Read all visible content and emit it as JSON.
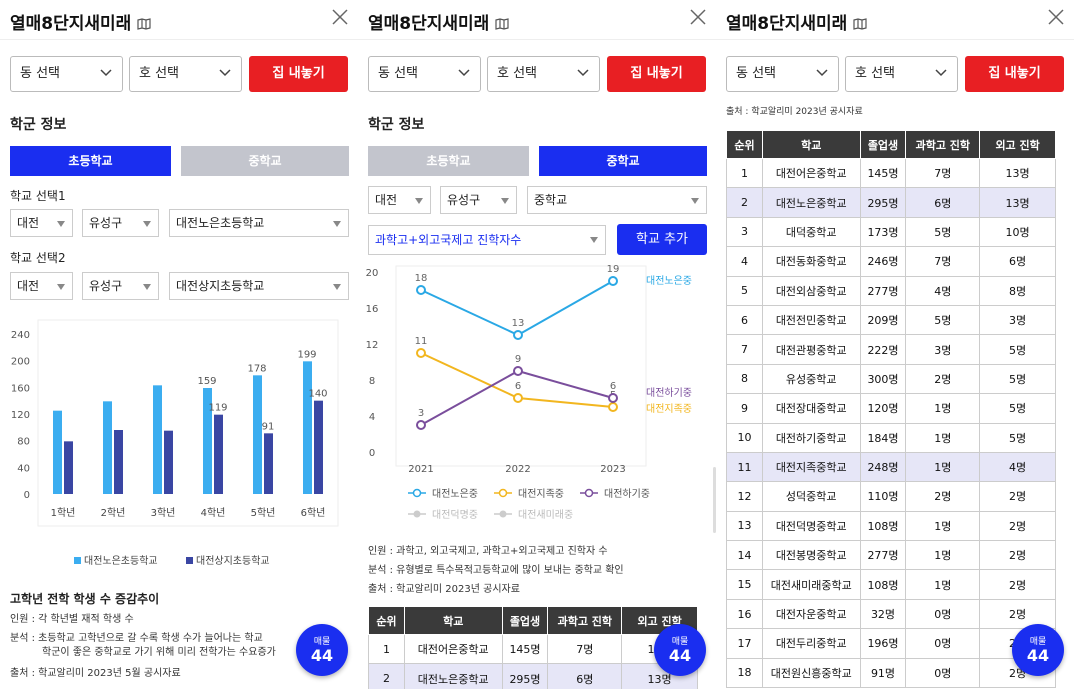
{
  "header": {
    "title": "열매8단지새미래"
  },
  "controls": {
    "dong": "동 선택",
    "ho": "호 선택",
    "sell_button": "집 내놓기"
  },
  "section_title": "학군 정보",
  "tabs": {
    "elementary": "초등학교",
    "middle": "중학교"
  },
  "panel1": {
    "school1_label": "학교 선택1",
    "school1": {
      "city": "대전",
      "district": "유성구",
      "school": "대전노은초등학교"
    },
    "school2_label": "학교 선택2",
    "school2": {
      "city": "대전",
      "district": "유성구",
      "school": "대전상지초등학교"
    },
    "chart_title": "고학년 전학 학생 수 증감추이",
    "notes": [
      "인원 : 각 학년별 재적 학생 수",
      "분석 : 초등학교 고학년으로 갈 수록 학생 수가 늘어나는 학교",
      "학군이 좋은 중학교로 가기 위해 미리 전학가는 수요증가",
      "출처 : 학교알리미 2023년 5월 공시자료"
    ]
  },
  "panel2": {
    "filter": {
      "city": "대전",
      "district": "유성구",
      "level": "중학교"
    },
    "metric": "과학고+외고국제고 진학자수",
    "add_button": "학교 추가",
    "legend_inactive": [
      "대전덕명중",
      "대전새미래중"
    ],
    "notes": [
      "인원 : 과학고, 외고국제고, 과학고+외고국제고 진학자 수",
      "분석 : 유형별로 특수목적고등학교에 많이 보내는 중학교 확인",
      "출처 : 학교알리미 2023년 공시자료"
    ]
  },
  "panel3": {
    "source_note": "출처 : 학교알리미 2023년 공시자료"
  },
  "badge": {
    "label": "매물",
    "count": "44"
  },
  "table": {
    "headers": [
      "순위",
      "학교",
      "졸업생",
      "과학고 진학",
      "외고 진학"
    ],
    "rows": [
      [
        "1",
        "대전어은중학교",
        "145명",
        "7명",
        "13명"
      ],
      [
        "2",
        "대전노은중학교",
        "295명",
        "6명",
        "13명"
      ],
      [
        "3",
        "대덕중학교",
        "173명",
        "5명",
        "10명"
      ],
      [
        "4",
        "대전동화중학교",
        "246명",
        "7명",
        "6명"
      ],
      [
        "5",
        "대전외삼중학교",
        "277명",
        "4명",
        "8명"
      ],
      [
        "6",
        "대전전민중학교",
        "209명",
        "5명",
        "3명"
      ],
      [
        "7",
        "대전관평중학교",
        "222명",
        "3명",
        "5명"
      ],
      [
        "8",
        "유성중학교",
        "300명",
        "2명",
        "5명"
      ],
      [
        "9",
        "대전장대중학교",
        "120명",
        "1명",
        "5명"
      ],
      [
        "10",
        "대전하기중학교",
        "184명",
        "1명",
        "5명"
      ],
      [
        "11",
        "대전지족중학교",
        "248명",
        "1명",
        "4명"
      ],
      [
        "12",
        "성덕중학교",
        "110명",
        "2명",
        "2명"
      ],
      [
        "13",
        "대전덕명중학교",
        "108명",
        "1명",
        "2명"
      ],
      [
        "14",
        "대전봉명중학교",
        "277명",
        "1명",
        "2명"
      ],
      [
        "15",
        "대전새미래중학교",
        "108명",
        "1명",
        "2명"
      ],
      [
        "16",
        "대전자운중학교",
        "32명",
        "0명",
        "2명"
      ],
      [
        "17",
        "대전두리중학교",
        "196명",
        "0명",
        "2명"
      ],
      [
        "18",
        "대전원신흥중학교",
        "91명",
        "0명",
        "2명"
      ]
    ],
    "highlight": [
      2,
      11
    ]
  },
  "colors": {
    "accent": "#1a2ef0",
    "red": "#e81f23",
    "bar1": "#3badf0",
    "bar2": "#3a46a3",
    "line1": "#2aa8e5",
    "line2": "#f2b61f",
    "line3": "#7a4e9c"
  },
  "chart_data": [
    {
      "type": "bar",
      "categories": [
        "1학년",
        "2학년",
        "3학년",
        "4학년",
        "5학년",
        "6학년"
      ],
      "series": [
        {
          "name": "대전노은초등학교",
          "values": [
            125,
            139,
            163,
            159,
            178,
            199
          ]
        },
        {
          "name": "대전상지초등학교",
          "values": [
            79,
            96,
            95,
            119,
            91,
            140
          ]
        }
      ],
      "ylim": [
        0,
        240
      ],
      "yticks": [
        0,
        40,
        80,
        120,
        160,
        200,
        240
      ],
      "labeled_points": [
        [
          3,
          0,
          "159"
        ],
        [
          3,
          1,
          "119"
        ],
        [
          4,
          0,
          "178"
        ],
        [
          4,
          1,
          "91"
        ],
        [
          5,
          0,
          "199"
        ],
        [
          5,
          1,
          "140"
        ]
      ],
      "legend": "bottom"
    },
    {
      "type": "line",
      "x": [
        "2021",
        "2022",
        "2023"
      ],
      "series": [
        {
          "name": "대전노은중",
          "values": [
            18,
            13,
            19
          ]
        },
        {
          "name": "대전지족중",
          "values": [
            11,
            6,
            5
          ]
        },
        {
          "name": "대전하기중",
          "values": [
            3,
            9,
            6
          ]
        }
      ],
      "ylim": [
        0,
        20
      ],
      "yticks": [
        0,
        4,
        8,
        12,
        16,
        20
      ],
      "legend": "bottom",
      "end_labels": [
        "대전노은중",
        "대전하기중",
        "대전지족중"
      ]
    }
  ]
}
